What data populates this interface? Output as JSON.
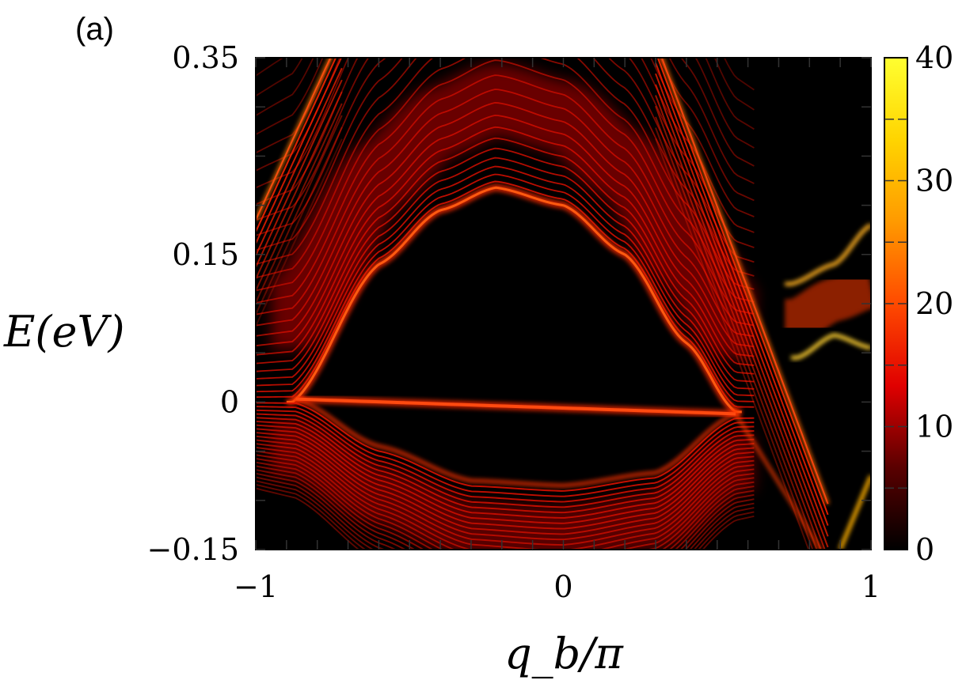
{
  "panel_label": "(a)",
  "chart_data": {
    "type": "heatmap",
    "xlabel": "q_b/π",
    "ylabel": "E(eV)",
    "xlim": [
      -1,
      1
    ],
    "ylim": [
      -0.15,
      0.35
    ],
    "x_tick_labels": [
      "−1",
      "0",
      "1"
    ],
    "x_tick_values": [
      -1,
      0,
      1
    ],
    "y_tick_labels": [
      "0.35",
      "0.15",
      "0",
      "−0.15"
    ],
    "y_tick_values": [
      0.35,
      0.15,
      0,
      -0.15
    ],
    "colorbar": {
      "range": [
        0,
        40
      ],
      "tick_values": [
        0,
        10,
        20,
        30,
        40
      ],
      "tick_labels": [
        "0",
        "10",
        "20",
        "30",
        "40"
      ],
      "colormap": [
        "#000000",
        "#5a0000",
        "#e00000",
        "#ff4a00",
        "#ff9a00",
        "#ffd400",
        "#ffff30"
      ]
    },
    "features": {
      "upper_band_minimum_edge": [
        [
          -0.88,
          0.0
        ],
        [
          -0.6,
          0.14
        ],
        [
          -0.4,
          0.195
        ],
        [
          -0.22,
          0.218
        ],
        [
          0.0,
          0.2
        ],
        [
          0.2,
          0.15
        ],
        [
          0.4,
          0.06
        ],
        [
          0.56,
          -0.01
        ]
      ],
      "flat_band": [
        [
          -0.87,
          0.003
        ],
        [
          0.56,
          -0.012
        ]
      ],
      "lower_band_maximum_edge": [
        [
          -0.87,
          0.003
        ],
        [
          -0.6,
          -0.045
        ],
        [
          -0.3,
          -0.08
        ],
        [
          0.0,
          -0.085
        ],
        [
          0.3,
          -0.072
        ],
        [
          0.56,
          -0.012
        ]
      ],
      "upper_gap_state": [
        [
          0.74,
          0.12
        ],
        [
          0.88,
          0.14
        ],
        [
          1.0,
          0.18
        ]
      ],
      "lower_gap_state": [
        [
          0.76,
          0.045
        ],
        [
          0.88,
          0.068
        ],
        [
          1.0,
          0.055
        ]
      ]
    }
  }
}
